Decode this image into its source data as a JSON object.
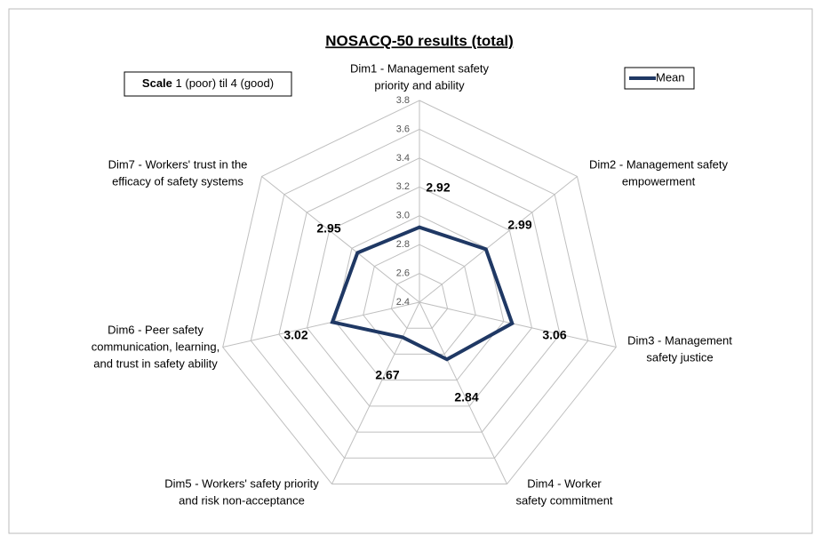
{
  "chart_data": {
    "type": "radar",
    "title": "NOSACQ-50 results (total)",
    "note": {
      "bold": "Scale",
      "text": " 1 (poor) til 4 (good)"
    },
    "categories": [
      [
        "Dim1 - Management safety",
        "priority and ability"
      ],
      [
        "Dim2 - Management safety",
        "empowerment"
      ],
      [
        "Dim3 - Management",
        "safety justice"
      ],
      [
        "Dim4 - Worker",
        "safety commitment"
      ],
      [
        "Dim5 - Workers' safety priority",
        "and risk non-acceptance"
      ],
      [
        "Dim6 - Peer safety",
        "communication, learning,",
        "and trust in safety ability"
      ],
      [
        "Dim7 - Workers' trust in the",
        "efficacy of safety systems"
      ]
    ],
    "series": [
      {
        "name": "Mean",
        "color": "#1f3864",
        "values": [
          2.92,
          2.99,
          3.06,
          2.84,
          2.67,
          3.02,
          2.95
        ]
      }
    ],
    "ylim": [
      2.4,
      3.8
    ],
    "yticks": [
      2.4,
      2.6,
      2.8,
      {
        "value": 3,
        "label": "3.0"
      },
      3.2,
      3.4,
      3.6,
      3.8
    ],
    "grid": true,
    "legend": "top-right"
  }
}
